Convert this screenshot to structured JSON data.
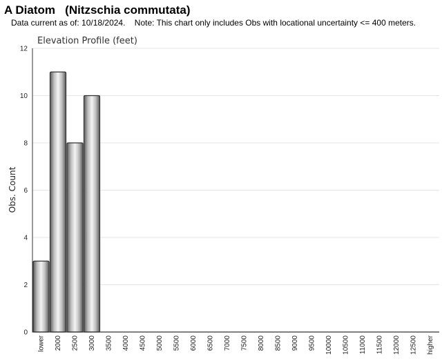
{
  "header": {
    "title": "A Diatom   (Nitzschia commutata)",
    "subtitle": "Data current as of: 10/18/2024.    Note: This chart only includes Obs with locational uncertainty <= 400 meters."
  },
  "chart_data": {
    "type": "bar",
    "title": "Elevation Profile (feet)",
    "xlabel": "",
    "ylabel": "Obs. Count",
    "ylim": [
      0,
      12
    ],
    "yticks": [
      0,
      2,
      4,
      6,
      8,
      10,
      12
    ],
    "grid": true,
    "legend": "none",
    "categories": [
      "lower",
      "2000",
      "2500",
      "3000",
      "3500",
      "4000",
      "4500",
      "5000",
      "5500",
      "6000",
      "6500",
      "7000",
      "7500",
      "8000",
      "8500",
      "9000",
      "9500",
      "10000",
      "10500",
      "11000",
      "11500",
      "12000",
      "12500",
      "higher"
    ],
    "values": [
      3,
      11,
      8,
      10,
      0,
      0,
      0,
      0,
      0,
      0,
      0,
      0,
      0,
      0,
      0,
      0,
      0,
      0,
      0,
      0,
      0,
      0,
      0,
      0
    ]
  }
}
